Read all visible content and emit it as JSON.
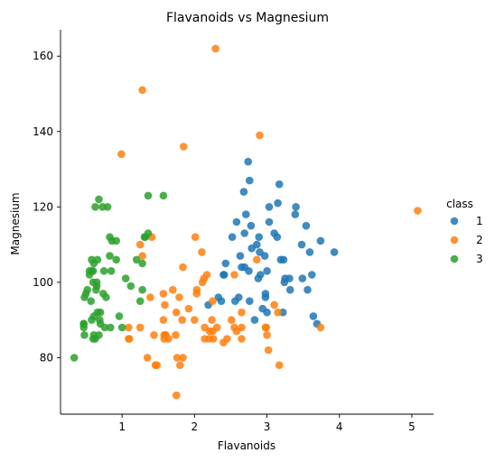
{
  "chart_data": {
    "type": "scatter",
    "title": "Flavanoids vs Magnesium",
    "xlabel": "Flavanoids",
    "ylabel": "Magnesium",
    "xlim": [
      0.15,
      5.3
    ],
    "ylim": [
      65,
      167
    ],
    "xticks": [
      1,
      2,
      3,
      4,
      5
    ],
    "yticks": [
      80,
      100,
      120,
      140,
      160
    ],
    "grid": false,
    "legend": {
      "title": "class",
      "placement": "right"
    },
    "series": [
      {
        "name": "1",
        "color": "#1f77b4",
        "points": [
          [
            2.76,
            127
          ],
          [
            3.24,
            100
          ],
          [
            3.49,
            101
          ],
          [
            2.69,
            113
          ],
          [
            3.39,
            118
          ],
          [
            2.52,
            112
          ],
          [
            2.98,
            96
          ],
          [
            3.15,
            121
          ],
          [
            2.98,
            97
          ],
          [
            3.32,
            98
          ],
          [
            2.43,
            105
          ],
          [
            2.76,
            95
          ],
          [
            3.69,
            89
          ],
          [
            3.64,
            91
          ],
          [
            2.91,
            102
          ],
          [
            3.14,
            112
          ],
          [
            3.4,
            120
          ],
          [
            3.93,
            108
          ],
          [
            3.03,
            116
          ],
          [
            3.17,
            126
          ],
          [
            2.41,
            102
          ],
          [
            2.88,
            101
          ],
          [
            2.37,
            95
          ],
          [
            2.61,
            96
          ],
          [
            2.68,
            124
          ],
          [
            2.94,
            93
          ],
          [
            2.19,
            94
          ],
          [
            2.97,
            107
          ],
          [
            2.33,
            96
          ],
          [
            3.25,
            101
          ],
          [
            3.19,
            106
          ],
          [
            2.69,
            104
          ],
          [
            2.74,
            132
          ],
          [
            2.86,
            110
          ],
          [
            2.63,
            107
          ],
          [
            3.56,
            98
          ],
          [
            3.0,
            92
          ],
          [
            3.22,
            92
          ],
          [
            2.75,
            103
          ],
          [
            2.58,
            116
          ],
          [
            2.89,
            112
          ],
          [
            2.9,
            108
          ],
          [
            3.74,
            111
          ],
          [
            2.79,
            109
          ],
          [
            3.23,
            106
          ],
          [
            3.54,
            115
          ],
          [
            3.03,
            120
          ],
          [
            3.48,
            110
          ],
          [
            3.59,
            108
          ],
          [
            3.31,
            101
          ],
          [
            2.65,
            104
          ],
          [
            3.0,
            103
          ],
          [
            2.71,
            118
          ],
          [
            3.62,
            102
          ],
          [
            2.78,
            115
          ],
          [
            3.1,
            113
          ],
          [
            2.83,
            90
          ],
          [
            2.4,
            102
          ],
          [
            2.56,
            95
          ]
        ]
      },
      {
        "name": "2",
        "color": "#ff7f0e",
        "points": [
          [
            1.25,
            88
          ],
          [
            1.35,
            80
          ],
          [
            1.09,
            88
          ],
          [
            1.28,
            151
          ],
          [
            2.13,
            101
          ],
          [
            2.14,
            88
          ],
          [
            2.65,
            85
          ],
          [
            1.57,
            97
          ],
          [
            3.0,
            86
          ],
          [
            2.17,
            102
          ],
          [
            1.41,
            112
          ],
          [
            1.79,
            96
          ],
          [
            1.58,
            86
          ],
          [
            1.48,
            78
          ],
          [
            1.44,
            86
          ],
          [
            0.99,
            134
          ],
          [
            1.09,
            85
          ],
          [
            2.31,
            88
          ],
          [
            1.25,
            110
          ],
          [
            1.6,
            86
          ],
          [
            2.2,
            85
          ],
          [
            1.46,
            78
          ],
          [
            1.75,
            70
          ],
          [
            2.65,
            92
          ],
          [
            1.59,
            94
          ],
          [
            2.11,
            100
          ],
          [
            1.76,
            80
          ],
          [
            1.85,
            136
          ],
          [
            2.0,
            90
          ],
          [
            2.45,
            85
          ],
          [
            3.02,
            82
          ],
          [
            2.25,
            95
          ],
          [
            1.75,
            92
          ],
          [
            2.21,
            87
          ],
          [
            1.84,
            104
          ],
          [
            2.01,
            112
          ],
          [
            2.29,
            162
          ],
          [
            2.55,
            102
          ],
          [
            1.92,
            93
          ],
          [
            1.74,
            86
          ],
          [
            2.26,
            85
          ],
          [
            2.98,
            88
          ],
          [
            2.25,
            87
          ],
          [
            1.6,
            86
          ],
          [
            2.14,
            85
          ],
          [
            1.57,
            90
          ],
          [
            1.8,
            78
          ],
          [
            1.84,
            80
          ],
          [
            2.86,
            106
          ],
          [
            5.08,
            119
          ],
          [
            1.1,
            85
          ],
          [
            2.9,
            139
          ],
          [
            2.65,
            88
          ],
          [
            2.58,
            87
          ],
          [
            2.03,
            98
          ],
          [
            3.15,
            92
          ],
          [
            2.99,
            88
          ],
          [
            3.1,
            94
          ],
          [
            1.28,
            107
          ],
          [
            3.17,
            78
          ],
          [
            2.4,
            84
          ],
          [
            2.55,
            88
          ],
          [
            3.74,
            88
          ],
          [
            2.51,
            90
          ],
          [
            1.39,
            96
          ],
          [
            2.24,
            90
          ],
          [
            1.7,
            98
          ],
          [
            2.1,
            108
          ],
          [
            1.58,
            85
          ],
          [
            1.64,
            85
          ],
          [
            2.03,
            97
          ],
          [
            1.83,
            90
          ]
        ]
      },
      {
        "name": "3",
        "color": "#2ca02c",
        "points": [
          [
            0.58,
            103
          ],
          [
            0.83,
            107
          ],
          [
            0.47,
            89
          ],
          [
            0.74,
            97
          ],
          [
            0.66,
            92
          ],
          [
            0.57,
            95
          ],
          [
            0.6,
            100
          ],
          [
            0.47,
            89
          ],
          [
            0.48,
            96
          ],
          [
            0.83,
            112
          ],
          [
            0.61,
            105
          ],
          [
            0.63,
            120
          ],
          [
            0.58,
            106
          ],
          [
            1.36,
            123
          ],
          [
            0.92,
            106
          ],
          [
            0.58,
            90
          ],
          [
            0.64,
            98
          ],
          [
            0.73,
            120
          ],
          [
            0.68,
            86
          ],
          [
            0.63,
            85
          ],
          [
            1.25,
            95
          ],
          [
            0.75,
            103
          ],
          [
            1.31,
            112
          ],
          [
            0.85,
            103
          ],
          [
            0.65,
            99
          ],
          [
            0.61,
            86
          ],
          [
            0.8,
            120
          ],
          [
            1.28,
            98
          ],
          [
            0.55,
            103
          ],
          [
            0.34,
            80
          ],
          [
            1.0,
            88
          ],
          [
            0.76,
            88
          ],
          [
            0.7,
            89
          ],
          [
            0.5,
            97
          ],
          [
            0.52,
            98
          ],
          [
            0.78,
            96
          ],
          [
            1.2,
            106
          ],
          [
            1.36,
            113
          ],
          [
            0.47,
            88
          ],
          [
            0.6,
            85
          ],
          [
            0.84,
            88
          ],
          [
            0.66,
            106
          ],
          [
            0.92,
            111
          ],
          [
            0.68,
            122
          ],
          [
            0.48,
            86
          ],
          [
            0.7,
            92
          ],
          [
            0.61,
            91
          ],
          [
            1.32,
            112
          ],
          [
            0.6,
            103
          ],
          [
            0.96,
            91
          ],
          [
            1.28,
            105
          ],
          [
            1.57,
            123
          ],
          [
            0.65,
            100
          ],
          [
            0.69,
            90
          ],
          [
            0.55,
            102
          ],
          [
            0.86,
            111
          ],
          [
            1.05,
            101
          ],
          [
            1.12,
            99
          ]
        ]
      }
    ]
  }
}
